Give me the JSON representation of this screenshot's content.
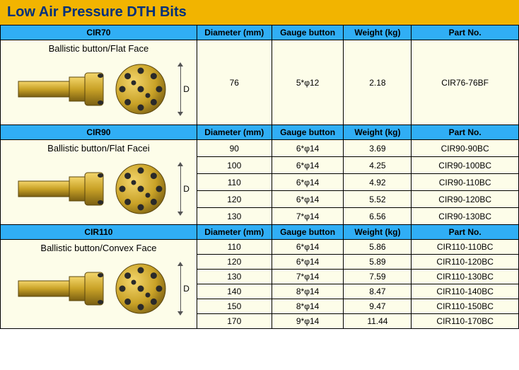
{
  "title": "Low Air Pressure DTH Bits",
  "title_bg": "#f2b400",
  "title_color": "#00307b",
  "header_bg": "#30aef5",
  "cell_bg_alt": "#fdfde9",
  "columns": [
    "Diameter (mm)",
    "Gauge button",
    "Weight (kg)",
    "Part No."
  ],
  "sections": [
    {
      "name": "CIR70",
      "subtitle": "Ballistic button/Flat Face",
      "rows": [
        {
          "diameter": "76",
          "gauge": "5*φ12",
          "weight": "2.18",
          "part": "CIR76-76BF"
        }
      ]
    },
    {
      "name": "CIR90",
      "subtitle": "Ballistic button/Flat Facei",
      "rows": [
        {
          "diameter": "90",
          "gauge": "6*φ14",
          "weight": "3.69",
          "part": "CIR90-90BC"
        },
        {
          "diameter": "100",
          "gauge": "6*φ14",
          "weight": "4.25",
          "part": "CIR90-100BC"
        },
        {
          "diameter": "110",
          "gauge": "6*φ14",
          "weight": "4.92",
          "part": "CIR90-110BC"
        },
        {
          "diameter": "120",
          "gauge": "6*φ14",
          "weight": "5.52",
          "part": "CIR90-120BC"
        },
        {
          "diameter": "130",
          "gauge": "7*φ14",
          "weight": "6.56",
          "part": "CIR90-130BC"
        }
      ]
    },
    {
      "name": "CIR110",
      "subtitle": "Ballistic button/Convex Face",
      "rows": [
        {
          "diameter": "110",
          "gauge": "6*φ14",
          "weight": "5.86",
          "part": "CIR110-110BC"
        },
        {
          "diameter": "120",
          "gauge": "6*φ14",
          "weight": "5.89",
          "part": "CIR110-120BC"
        },
        {
          "diameter": "130",
          "gauge": "7*φ14",
          "weight": "7.59",
          "part": "CIR110-130BC"
        },
        {
          "diameter": "140",
          "gauge": "8*φ14",
          "weight": "8.47",
          "part": "CIR110-140BC"
        },
        {
          "diameter": "150",
          "gauge": "8*φ14",
          "weight": "9.47",
          "part": "CIR110-150BC"
        },
        {
          "diameter": "170",
          "gauge": "9*φ14",
          "weight": "11.44",
          "part": "CIR110-170BC"
        }
      ]
    }
  ],
  "bit_body_color": "#c9a227",
  "bit_body_hilite": "#f3d56b",
  "bit_body_shadow": "#7a5f12",
  "bit_pin_color": "#2a2a2a"
}
